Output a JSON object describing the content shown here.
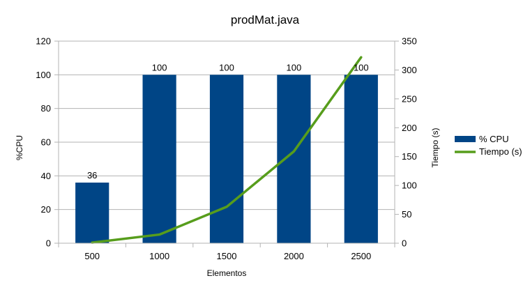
{
  "chart_data": {
    "type": "bar",
    "title": "prodMat.java",
    "xlabel": "Elementos",
    "ylabel": "%CPU",
    "y2label": "Tiempo (s)",
    "categories": [
      "500",
      "1000",
      "1500",
      "2000",
      "2500"
    ],
    "ylim": [
      0,
      120
    ],
    "yticks": [
      0,
      20,
      40,
      60,
      80,
      100,
      120
    ],
    "y2lim": [
      0,
      350
    ],
    "y2ticks": [
      0,
      50,
      100,
      150,
      200,
      250,
      300,
      350
    ],
    "grid": "horizontal",
    "legend_position": "right",
    "series": [
      {
        "name": "% CPU",
        "type": "bar",
        "axis": "left",
        "color": "#004586",
        "values": [
          36,
          100,
          100,
          100,
          100
        ],
        "data_labels": [
          "36",
          "100",
          "100",
          "100",
          "100"
        ]
      },
      {
        "name": "Tiempo (s)",
        "type": "line",
        "axis": "right",
        "color": "#579d1c",
        "values": [
          1,
          15,
          63,
          159,
          322
        ]
      }
    ]
  }
}
